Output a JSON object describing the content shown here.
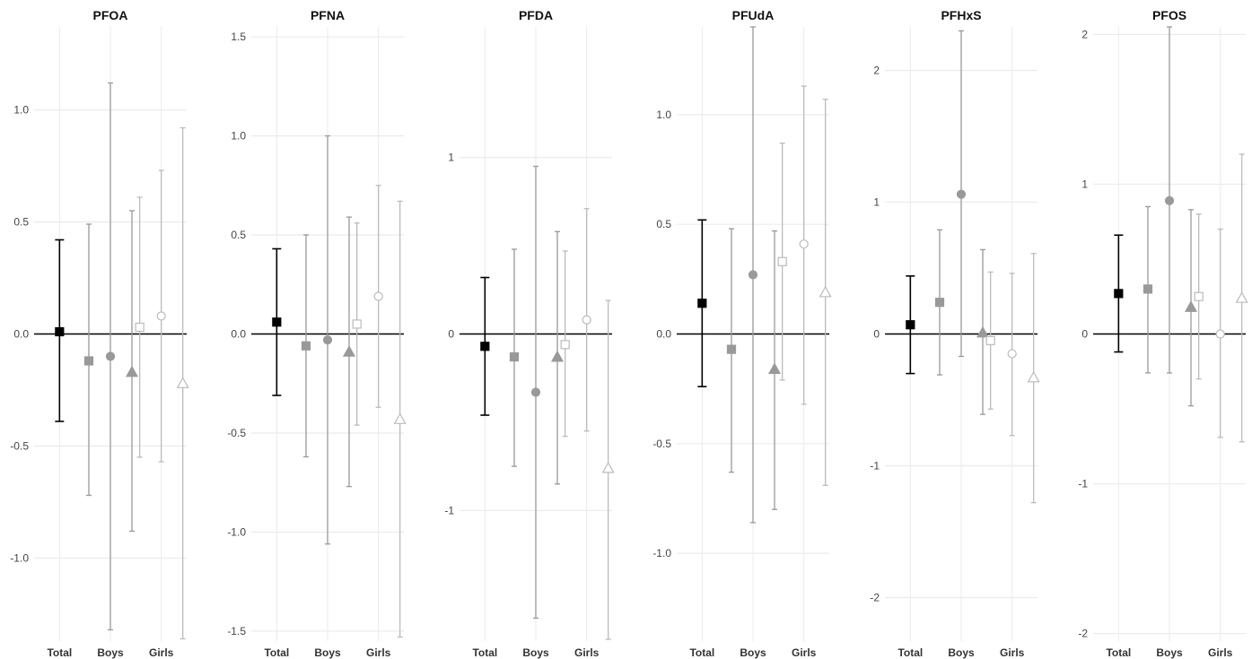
{
  "colors": {
    "total": "#000000",
    "boys": "#999999",
    "girls": "#bbbbbb",
    "grid": "#ebebeb",
    "zero_line": "#000000"
  },
  "marker_shapes": [
    "filled-square",
    "filled-circle",
    "filled-triangle",
    "open-square",
    "open-circle",
    "open-triangle"
  ],
  "chart_data": [
    {
      "type": "errorbar",
      "title": "PFOA",
      "categories": [
        "Total",
        "Boys",
        "Girls"
      ],
      "yticks": [
        -1.0,
        -0.5,
        0.0,
        0.5,
        1.0
      ],
      "ytick_labels": [
        "-1.0",
        "-0.5",
        "0.0",
        "0.5",
        "1.0"
      ],
      "ylim": [
        -1.37,
        1.37
      ],
      "points": [
        {
          "group": "Total",
          "marker": "filled-square",
          "est": 0.01,
          "lo": -0.39,
          "hi": 0.42
        },
        {
          "group": "Boys",
          "marker": "filled-square",
          "est": -0.12,
          "lo": -0.72,
          "hi": 0.49
        },
        {
          "group": "Boys",
          "marker": "filled-circle",
          "est": -0.1,
          "lo": -1.32,
          "hi": 1.12
        },
        {
          "group": "Boys",
          "marker": "filled-triangle",
          "est": -0.17,
          "lo": -0.88,
          "hi": 0.55
        },
        {
          "group": "Girls",
          "marker": "open-square",
          "est": 0.03,
          "lo": -0.55,
          "hi": 0.61
        },
        {
          "group": "Girls",
          "marker": "open-circle",
          "est": 0.08,
          "lo": -0.57,
          "hi": 0.73
        },
        {
          "group": "Girls",
          "marker": "open-triangle",
          "est": -0.22,
          "lo": -1.36,
          "hi": 0.92
        }
      ]
    },
    {
      "type": "errorbar",
      "title": "PFNA",
      "categories": [
        "Total",
        "Boys",
        "Girls"
      ],
      "yticks": [
        -1.5,
        -1.0,
        -0.5,
        0.0,
        0.5,
        1.0,
        1.5
      ],
      "ytick_labels": [
        "-1.5",
        "-1.0",
        "-0.5",
        "0.0",
        "0.5",
        "1.0",
        "1.5"
      ],
      "ylim": [
        -1.55,
        1.55
      ],
      "points": [
        {
          "group": "Total",
          "marker": "filled-square",
          "est": 0.06,
          "lo": -0.31,
          "hi": 0.43
        },
        {
          "group": "Boys",
          "marker": "filled-square",
          "est": -0.06,
          "lo": -0.62,
          "hi": 0.5
        },
        {
          "group": "Boys",
          "marker": "filled-circle",
          "est": -0.03,
          "lo": -1.06,
          "hi": 1.0
        },
        {
          "group": "Boys",
          "marker": "filled-triangle",
          "est": -0.09,
          "lo": -0.77,
          "hi": 0.59
        },
        {
          "group": "Girls",
          "marker": "open-square",
          "est": 0.05,
          "lo": -0.46,
          "hi": 0.56
        },
        {
          "group": "Girls",
          "marker": "open-circle",
          "est": 0.19,
          "lo": -0.37,
          "hi": 0.75
        },
        {
          "group": "Girls",
          "marker": "open-triangle",
          "est": -0.43,
          "lo": -1.53,
          "hi": 0.67
        }
      ]
    },
    {
      "type": "errorbar",
      "title": "PFDA",
      "categories": [
        "Total",
        "Boys",
        "Girls"
      ],
      "yticks": [
        -1,
        0,
        1
      ],
      "ytick_labels": [
        "-1",
        "0",
        "1"
      ],
      "ylim": [
        -1.74,
        1.74
      ],
      "points": [
        {
          "group": "Total",
          "marker": "filled-square",
          "est": -0.07,
          "lo": -0.46,
          "hi": 0.32
        },
        {
          "group": "Boys",
          "marker": "filled-square",
          "est": -0.13,
          "lo": -0.75,
          "hi": 0.48
        },
        {
          "group": "Boys",
          "marker": "filled-circle",
          "est": -0.33,
          "lo": -1.61,
          "hi": 0.95
        },
        {
          "group": "Boys",
          "marker": "filled-triangle",
          "est": -0.13,
          "lo": -0.85,
          "hi": 0.58
        },
        {
          "group": "Girls",
          "marker": "open-square",
          "est": -0.06,
          "lo": -0.58,
          "hi": 0.47
        },
        {
          "group": "Girls",
          "marker": "open-circle",
          "est": 0.08,
          "lo": -0.55,
          "hi": 0.71
        },
        {
          "group": "Girls",
          "marker": "open-triangle",
          "est": -0.76,
          "lo": -1.73,
          "hi": 0.19
        }
      ]
    },
    {
      "type": "errorbar",
      "title": "PFUdA",
      "categories": [
        "Total",
        "Boys",
        "Girls"
      ],
      "yticks": [
        -1.0,
        -0.5,
        0.0,
        0.5,
        1.0
      ],
      "ytick_labels": [
        "-1.0",
        "-0.5",
        "0.0",
        "0.5",
        "1.0"
      ],
      "ylim": [
        -1.4,
        1.4
      ],
      "points": [
        {
          "group": "Total",
          "marker": "filled-square",
          "est": 0.14,
          "lo": -0.24,
          "hi": 0.52
        },
        {
          "group": "Boys",
          "marker": "filled-square",
          "est": -0.07,
          "lo": -0.63,
          "hi": 0.48
        },
        {
          "group": "Boys",
          "marker": "filled-circle",
          "est": 0.27,
          "lo": -0.86,
          "hi": 1.4
        },
        {
          "group": "Boys",
          "marker": "filled-triangle",
          "est": -0.16,
          "lo": -0.8,
          "hi": 0.47
        },
        {
          "group": "Girls",
          "marker": "open-square",
          "est": 0.33,
          "lo": -0.21,
          "hi": 0.87
        },
        {
          "group": "Girls",
          "marker": "open-circle",
          "est": 0.41,
          "lo": -0.32,
          "hi": 1.13
        },
        {
          "group": "Girls",
          "marker": "open-triangle",
          "est": 0.19,
          "lo": -0.69,
          "hi": 1.07
        }
      ]
    },
    {
      "type": "errorbar",
      "title": "PFHxS",
      "categories": [
        "Total",
        "Boys",
        "Girls"
      ],
      "yticks": [
        -2,
        -1,
        0,
        1,
        2
      ],
      "ytick_labels": [
        "-2",
        "-1",
        "0",
        "1",
        "2"
      ],
      "ylim": [
        -2.33,
        2.33
      ],
      "points": [
        {
          "group": "Total",
          "marker": "filled-square",
          "est": 0.07,
          "lo": -0.3,
          "hi": 0.44
        },
        {
          "group": "Boys",
          "marker": "filled-square",
          "est": 0.24,
          "lo": -0.31,
          "hi": 0.79
        },
        {
          "group": "Boys",
          "marker": "filled-circle",
          "est": 1.06,
          "lo": -0.17,
          "hi": 2.3
        },
        {
          "group": "Boys",
          "marker": "filled-triangle",
          "est": 0.01,
          "lo": -0.61,
          "hi": 0.64
        },
        {
          "group": "Girls",
          "marker": "open-square",
          "est": -0.05,
          "lo": -0.57,
          "hi": 0.47
        },
        {
          "group": "Girls",
          "marker": "open-circle",
          "est": -0.15,
          "lo": -0.77,
          "hi": 0.46
        },
        {
          "group": "Girls",
          "marker": "open-triangle",
          "est": -0.33,
          "lo": -1.28,
          "hi": 0.61
        }
      ]
    },
    {
      "type": "errorbar",
      "title": "PFOS",
      "categories": [
        "Total",
        "Boys",
        "Girls"
      ],
      "yticks": [
        -2,
        -1,
        0,
        1,
        2
      ],
      "ytick_labels": [
        "-2",
        "-1",
        "0",
        "1",
        "2"
      ],
      "ylim": [
        -2.05,
        2.05
      ],
      "points": [
        {
          "group": "Total",
          "marker": "filled-square",
          "est": 0.27,
          "lo": -0.12,
          "hi": 0.66
        },
        {
          "group": "Boys",
          "marker": "filled-square",
          "est": 0.3,
          "lo": -0.26,
          "hi": 0.85
        },
        {
          "group": "Boys",
          "marker": "filled-circle",
          "est": 0.89,
          "lo": -0.26,
          "hi": 2.05
        },
        {
          "group": "Boys",
          "marker": "filled-triangle",
          "est": 0.18,
          "lo": -0.48,
          "hi": 0.83
        },
        {
          "group": "Girls",
          "marker": "open-square",
          "est": 0.25,
          "lo": -0.3,
          "hi": 0.8
        },
        {
          "group": "Girls",
          "marker": "open-circle",
          "est": 0.0,
          "lo": -0.69,
          "hi": 0.7
        },
        {
          "group": "Girls",
          "marker": "open-triangle",
          "est": 0.24,
          "lo": -0.72,
          "hi": 1.2
        }
      ]
    }
  ]
}
